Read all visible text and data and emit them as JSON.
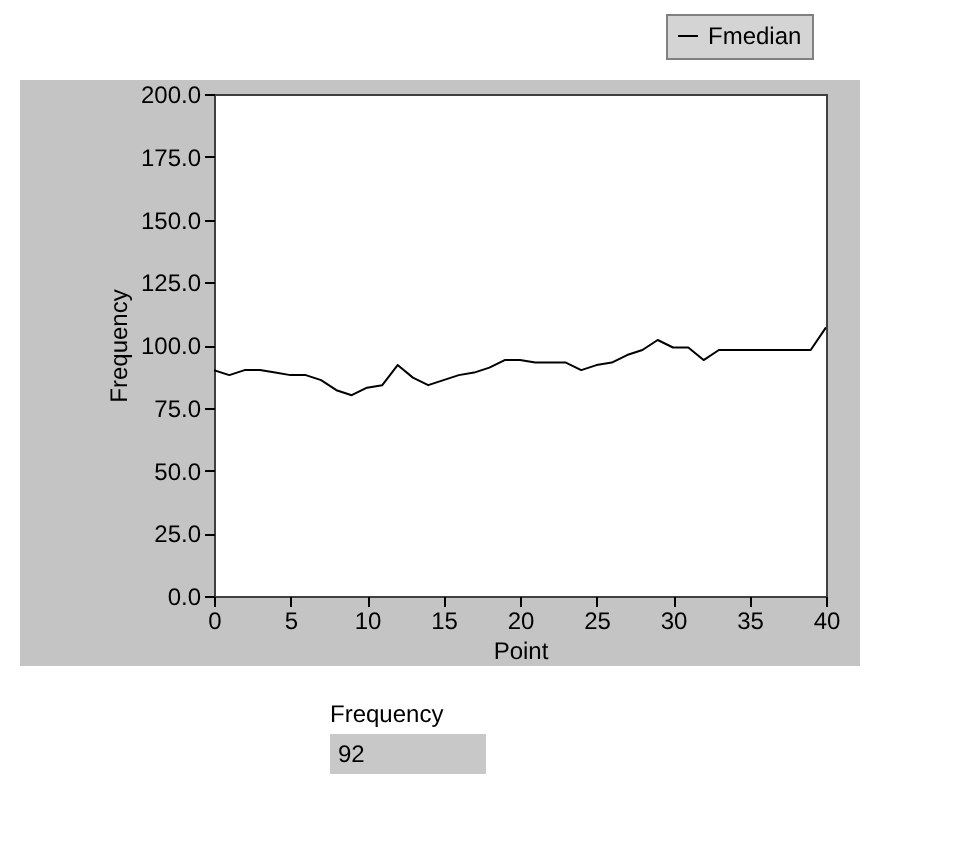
{
  "chart_data": {
    "type": "line",
    "xlabel": "Point",
    "ylabel": "Frequency",
    "x": [
      0,
      1,
      2,
      3,
      4,
      5,
      6,
      7,
      8,
      9,
      10,
      11,
      12,
      13,
      14,
      15,
      16,
      17,
      18,
      19,
      20,
      21,
      22,
      23,
      24,
      25,
      26,
      27,
      28,
      29,
      30,
      31,
      32,
      33,
      34,
      35,
      36,
      37,
      38,
      39,
      40
    ],
    "series": [
      {
        "name": "Fmedian",
        "color": "#000000",
        "values": [
          90,
          88,
          90,
          90,
          89,
          88,
          88,
          86,
          82,
          80,
          83,
          84,
          92,
          87,
          84,
          86,
          88,
          89,
          91,
          94,
          94,
          93,
          93,
          93,
          90,
          92,
          93,
          96,
          98,
          102,
          99,
          99,
          94,
          98,
          98,
          98,
          98,
          98,
          98,
          98,
          107
        ]
      }
    ],
    "xlim": [
      0,
      40
    ],
    "xticks": [
      0,
      5,
      10,
      15,
      20,
      25,
      30,
      35,
      40
    ],
    "ylim": [
      0,
      200
    ],
    "yticks": [
      {
        "value": 0,
        "label": "0.0"
      },
      {
        "value": 25,
        "label": "25.0"
      },
      {
        "value": 50,
        "label": "50.0"
      },
      {
        "value": 75,
        "label": "75.0"
      },
      {
        "value": 100,
        "label": "100.0"
      },
      {
        "value": 125,
        "label": "125.0"
      },
      {
        "value": 150,
        "label": "150.0"
      },
      {
        "value": 175,
        "label": "175.0"
      },
      {
        "value": 200,
        "label": "200.0"
      }
    ],
    "legend": "top right",
    "grid": false,
    "marker": "none",
    "line_style": "solid",
    "annotations": [
      "Frequency",
      "92"
    ]
  }
}
